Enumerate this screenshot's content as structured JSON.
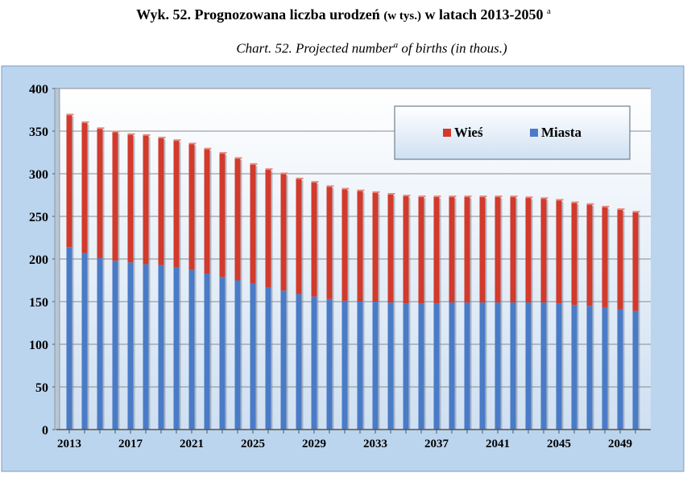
{
  "title_pl_main": "Wyk.  52. Prognozowana liczba urodzeń",
  "title_pl_unit": "(w tys.)",
  "title_pl_years": "w latach 2013-2050",
  "title_superscript": "a",
  "title_en_a": "Chart. 52. Projected number",
  "title_en_b": "of births (in thous.)",
  "colors": {
    "wies": "#d23a2c",
    "miasta": "#4a7bc7",
    "plot_bg_top": "#ffffff",
    "plot_bg_bottom": "#cfe0f2",
    "outer_bg": "#bcd5ee"
  },
  "chart_data": {
    "type": "bar",
    "stacked": true,
    "x_tick_labels": [
      "2013",
      "2017",
      "2021",
      "2025",
      "2029",
      "2033",
      "2037",
      "2041",
      "2045",
      "2049"
    ],
    "categories": [
      2013,
      2014,
      2015,
      2016,
      2017,
      2018,
      2019,
      2020,
      2021,
      2022,
      2023,
      2024,
      2025,
      2026,
      2027,
      2028,
      2029,
      2030,
      2031,
      2032,
      2033,
      2034,
      2035,
      2036,
      2037,
      2038,
      2039,
      2040,
      2041,
      2042,
      2043,
      2044,
      2045,
      2046,
      2047,
      2048,
      2049,
      2050
    ],
    "series": [
      {
        "name": "Miasta",
        "values": [
          214,
          207,
          201,
          198,
          196,
          194,
          193,
          190,
          187,
          183,
          179,
          175,
          171,
          167,
          163,
          159,
          156,
          153,
          151,
          150,
          150,
          149,
          148,
          148,
          148,
          149,
          149,
          149,
          149,
          149,
          149,
          149,
          148,
          146,
          145,
          143,
          141,
          139
        ]
      },
      {
        "name": "Wieś",
        "values": [
          155,
          153,
          152,
          151,
          150,
          151,
          149,
          149,
          148,
          146,
          145,
          143,
          140,
          138,
          137,
          135,
          134,
          132,
          131,
          130,
          128,
          127,
          126,
          125,
          125,
          124,
          124,
          124,
          124,
          124,
          123,
          122,
          121,
          120,
          119,
          118,
          117,
          116
        ]
      }
    ],
    "legend": [
      "Wieś",
      "Miasta"
    ],
    "legend_position": "top-right",
    "ylim": [
      0,
      400
    ],
    "yticks": [
      0,
      50,
      100,
      150,
      200,
      250,
      300,
      350,
      400
    ],
    "grid": true
  }
}
